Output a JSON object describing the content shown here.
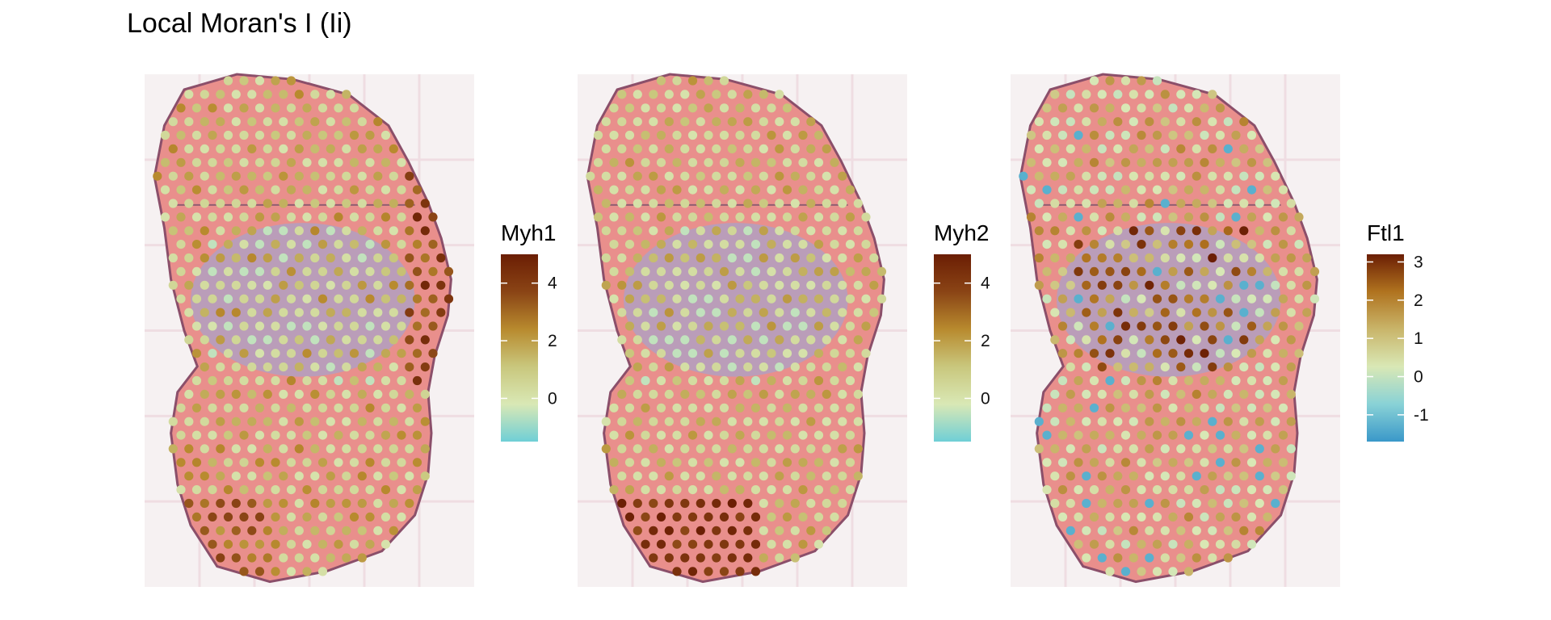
{
  "chart_data": {
    "type": "heatmap",
    "title": "Local Moran's I (Ii)",
    "panels": [
      {
        "name": "Myh1",
        "legend_title": "Myh1",
        "range": [
          -1.5,
          5
        ],
        "ticks": [
          0,
          2,
          4
        ],
        "tick_labels": [
          "0",
          "2",
          "4"
        ],
        "palette": [
          "#6fcfd6",
          "#d9e8b5",
          "#c9c77d",
          "#b88a2e",
          "#8a4415",
          "#6b1e04"
        ],
        "spot_value_levels": [
          -1,
          0,
          1,
          2,
          3,
          4,
          5
        ],
        "hotspots": [
          "upper-right edge",
          "lower-left region"
        ]
      },
      {
        "name": "Myh2",
        "legend_title": "Myh2",
        "range": [
          -1.5,
          5
        ],
        "ticks": [
          0,
          2,
          4
        ],
        "tick_labels": [
          "0",
          "2",
          "4"
        ],
        "palette": [
          "#6fcfd6",
          "#d9e8b5",
          "#c9c77d",
          "#b88a2e",
          "#8a4415",
          "#6b1e04"
        ],
        "spot_value_levels": [
          -1,
          0,
          1,
          2,
          3,
          4,
          5
        ],
        "hotspots": [
          "lower-left region"
        ]
      },
      {
        "name": "Ftl1",
        "legend_title": "Ftl1",
        "range": [
          -1.7,
          3.2
        ],
        "ticks": [
          -1,
          0,
          1,
          2,
          3
        ],
        "tick_labels": [
          "-1",
          "0",
          "1",
          "2",
          "3"
        ],
        "palette": [
          "#3a98c9",
          "#89d2d6",
          "#d9e8b5",
          "#c9b56a",
          "#b0731f",
          "#6b1e04"
        ],
        "spot_value_levels": [
          -1.5,
          -1,
          0,
          1,
          2,
          3
        ],
        "hotspots": [
          "center region"
        ]
      }
    ],
    "background": "tissue histology image (H&E-like, pink with purple center)",
    "grid": false
  }
}
